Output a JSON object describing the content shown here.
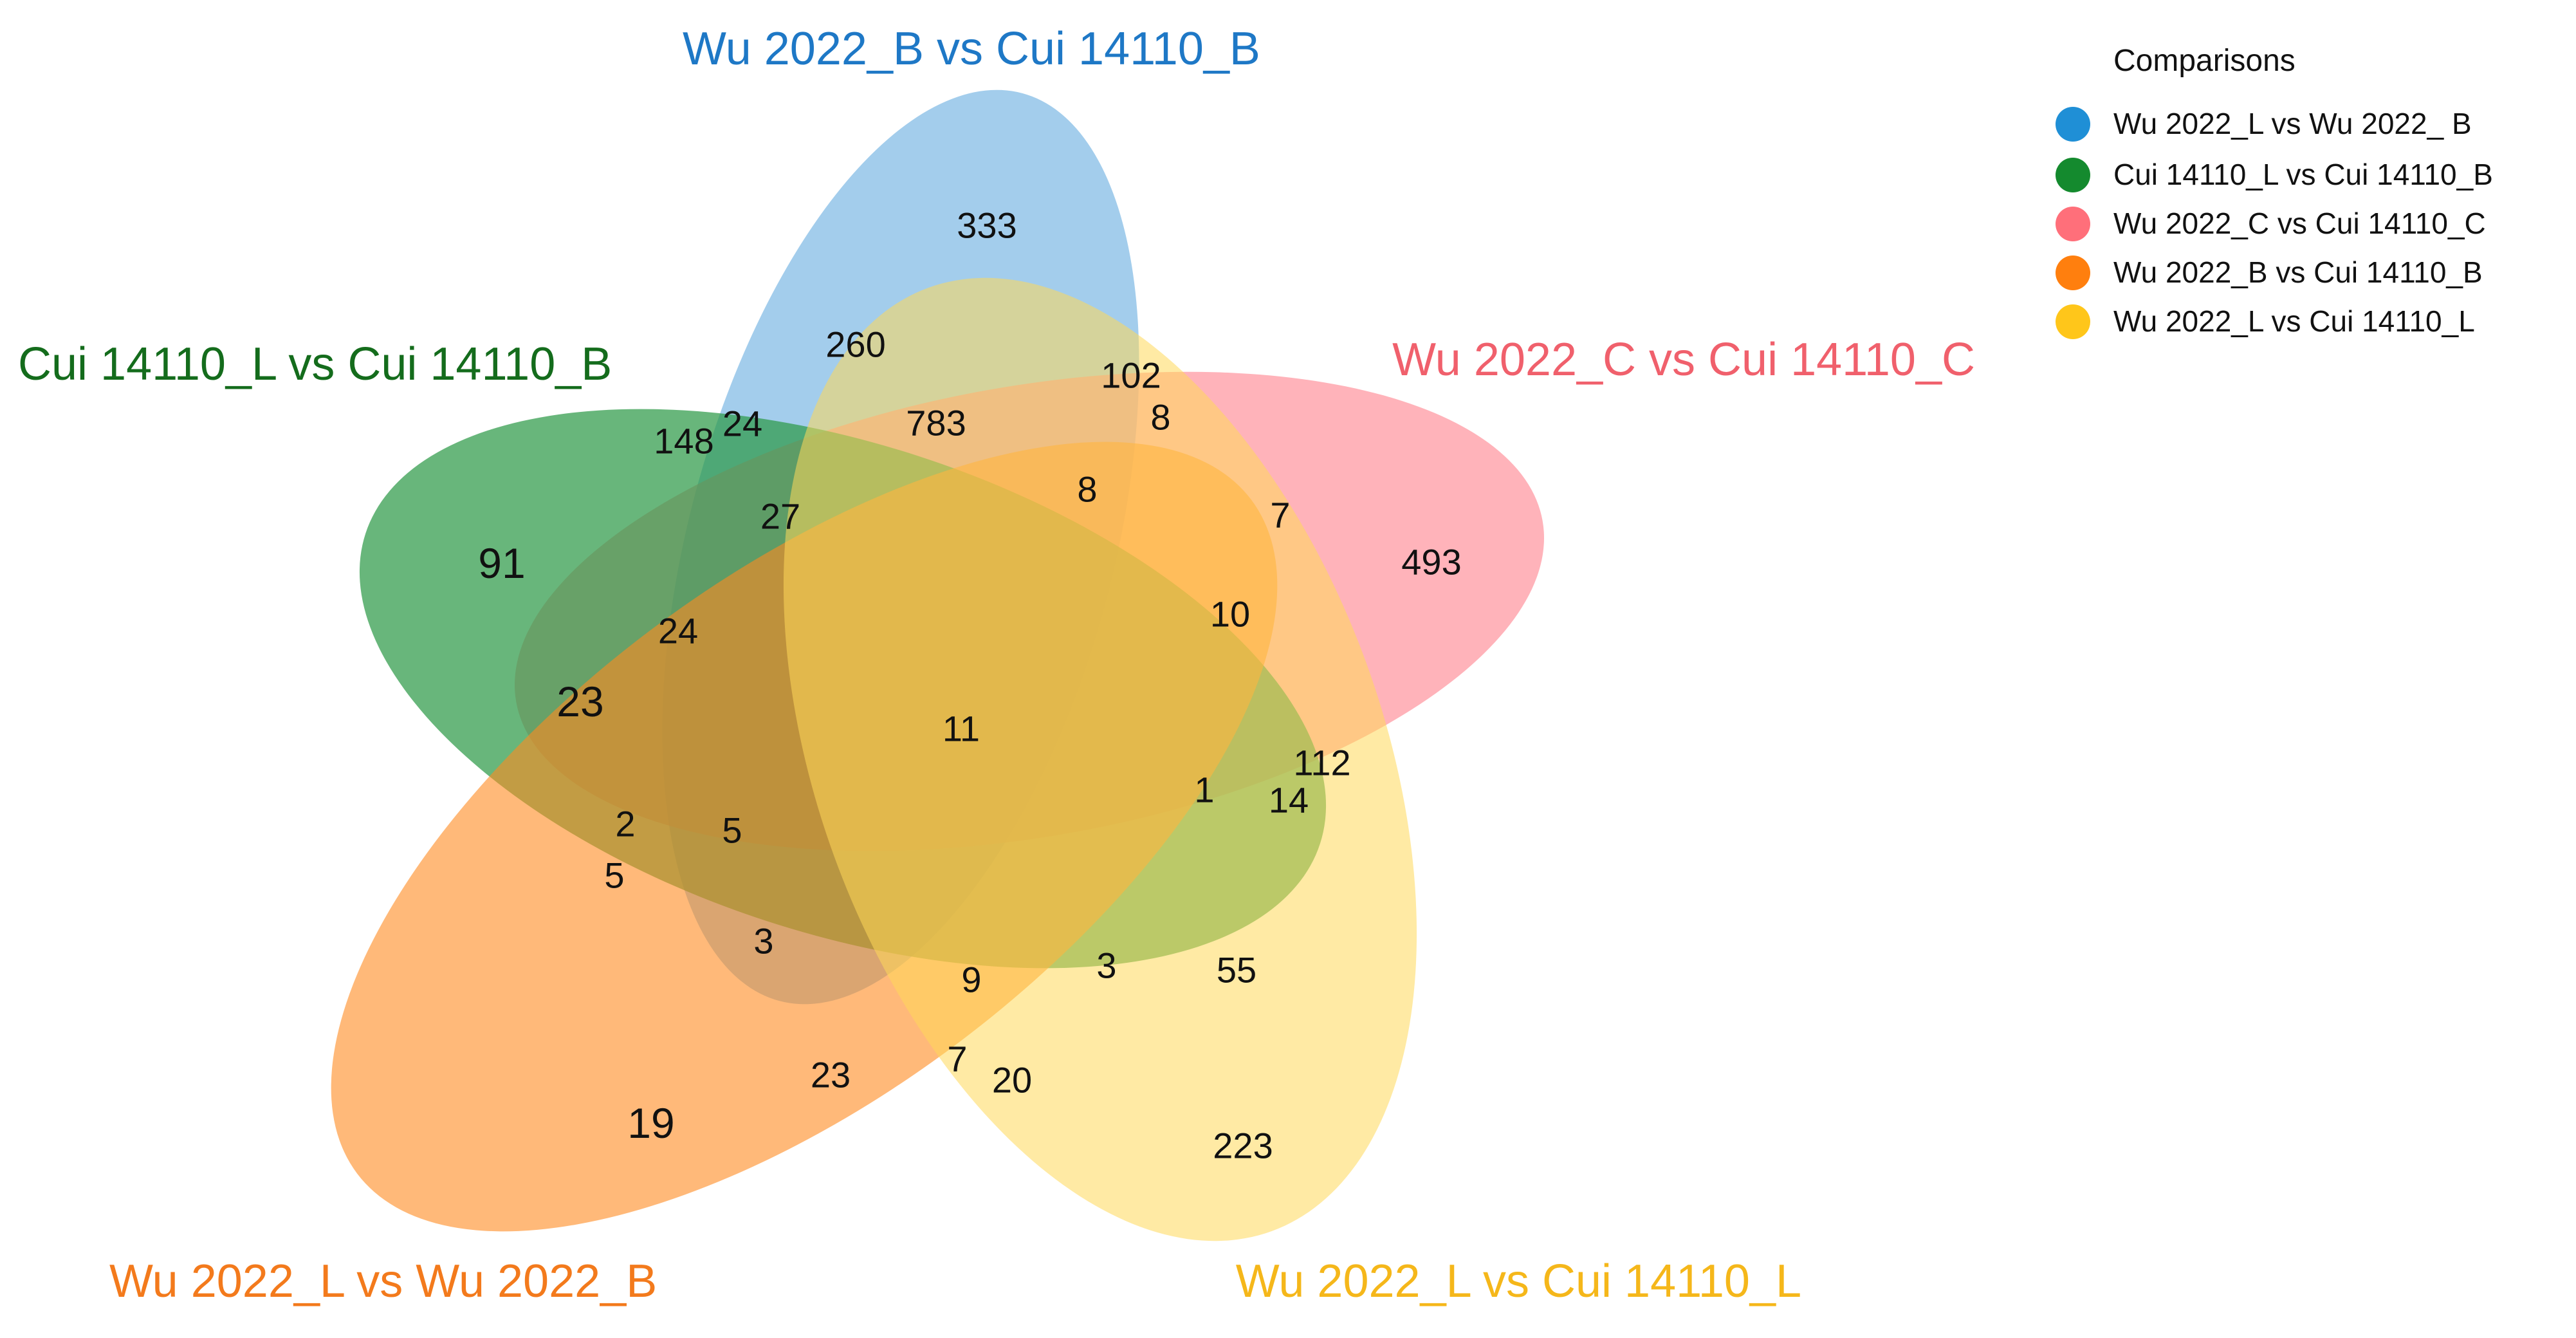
{
  "legend": {
    "title": "Comparisons",
    "items": [
      {
        "label": "Wu 2022_L vs Wu 2022_ B",
        "color": "#1f8fd6"
      },
      {
        "label": "Cui 14110_L vs Cui 14110_B",
        "color": "#148a2e"
      },
      {
        "label": "Wu 2022_C vs Cui 14110_C",
        "color": "#ff6f7a"
      },
      {
        "label": "Wu 2022_B vs Cui 14110_B",
        "color": "#ff7f0e"
      },
      {
        "label": "Wu 2022_L vs Cui 14110_L",
        "color": "#ffc61a"
      }
    ]
  },
  "sets": [
    {
      "key": "blue",
      "label": "Wu 2022_B vs Cui 14110_B",
      "fill": "#6baee0",
      "text_color": "#1e78c6"
    },
    {
      "key": "green",
      "label": "Cui 14110_L  vs  Cui 14110_B",
      "fill": "#2e9a48",
      "text_color": "#146c1c"
    },
    {
      "key": "pink",
      "label": "Wu 2022_C  vs Cui 14110_C",
      "fill": "#ff8590",
      "text_color": "#f0606c"
    },
    {
      "key": "orange",
      "label": "Wu 2022_L vs Wu 2022_B",
      "fill": "#ff8a20",
      "text_color": "#f37a1c"
    },
    {
      "key": "yellow",
      "label": "Wu 2022_L vs Cui 14110_L",
      "fill": "#ffd95a",
      "text_color": "#f5b71a"
    }
  ],
  "regions": [
    "333",
    "260",
    "102",
    "783",
    "8",
    "24",
    "148",
    "91",
    "27",
    "8",
    "7",
    "493",
    "24",
    "23",
    "10",
    "11",
    "112",
    "1",
    "14",
    "2",
    "5",
    "5",
    "3",
    "9",
    "3",
    "55",
    "23",
    "7",
    "20",
    "19",
    "223"
  ]
}
